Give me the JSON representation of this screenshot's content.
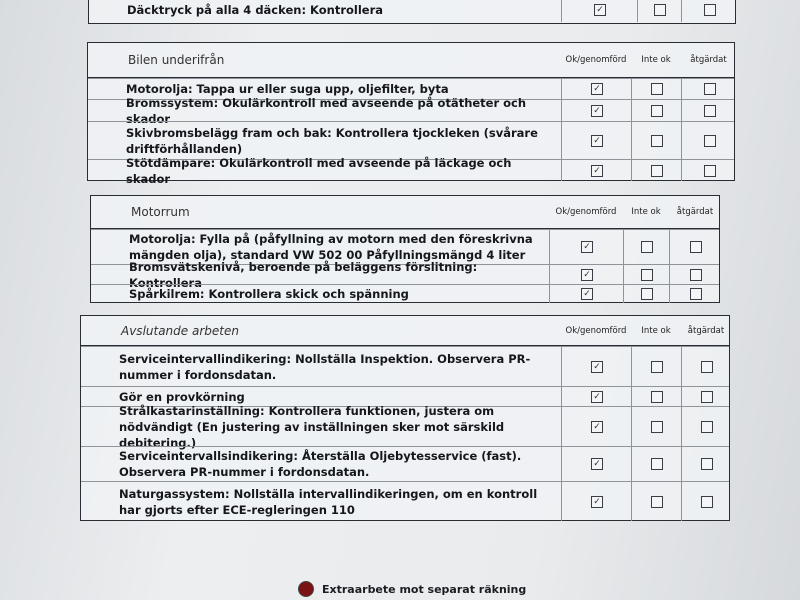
{
  "columns": {
    "ok": "Ok/genomförd",
    "not_ok": "Inte ok",
    "fixed": "åtgärdat"
  },
  "top_partial": {
    "rows": [
      {
        "text": "Däcktryck på alla 4 däcken: Kontrollera",
        "ok": true,
        "not_ok": false,
        "fixed": false
      }
    ]
  },
  "sections": [
    {
      "title": "Bilen underifrån",
      "rows": [
        {
          "text": "Motorolja: Tappa ur eller suga upp, oljefilter, byta",
          "ok": true,
          "not_ok": false,
          "fixed": false
        },
        {
          "text": "Bromssystem: Okulärkontroll med avseende på otätheter och skador",
          "ok": true,
          "not_ok": false,
          "fixed": false
        },
        {
          "text": "Skivbromsbelägg fram och bak: Kontrollera tjockleken (svårare driftförhållanden)",
          "ok": true,
          "not_ok": false,
          "fixed": false
        },
        {
          "text": "Stötdämpare: Okulärkontroll med avseende på läckage och skador",
          "ok": true,
          "not_ok": false,
          "fixed": false
        }
      ]
    },
    {
      "title": "Motorrum",
      "rows": [
        {
          "text": "Motorolja: Fylla på (påfyllning av motorn med den föreskrivna mängden olja), standard VW 502 00 Påfyllningsmängd 4 liter",
          "ok": true,
          "not_ok": false,
          "fixed": false
        },
        {
          "text": "Bromsvätskenivå, beroende på beläggens förslitning: Kontrollera",
          "ok": true,
          "not_ok": false,
          "fixed": false
        },
        {
          "text": "Spårkilrem: Kontrollera skick och spänning",
          "ok": true,
          "not_ok": false,
          "fixed": false
        }
      ]
    },
    {
      "title": "Avslutande arbeten",
      "rows": [
        {
          "text": "Serviceintervallindikering: Nollställa Inspektion. Observera PR-nummer i fordonsdatan.",
          "ok": true,
          "not_ok": false,
          "fixed": false
        },
        {
          "text": "Gör en provkörning",
          "ok": true,
          "not_ok": false,
          "fixed": false
        },
        {
          "text": "Strålkastarinställning: Kontrollera funktionen, justera om nödvändigt (En justering av inställningen sker mot särskild debitering.)",
          "ok": true,
          "not_ok": false,
          "fixed": false
        },
        {
          "text": "Serviceintervallsindikering: Återställa Oljebytesservice (fast). Observera PR-nummer i fordonsdatan.",
          "ok": true,
          "not_ok": false,
          "fixed": false
        },
        {
          "text": "Naturgassystem: Nollställa intervallindikeringen, om en kontroll har gjorts efter ECE-regleringen 110",
          "ok": true,
          "not_ok": false,
          "fixed": false
        }
      ]
    }
  ],
  "footer": {
    "text": "Extraarbete mot separat räkning",
    "marker_color": "#7a1414"
  }
}
